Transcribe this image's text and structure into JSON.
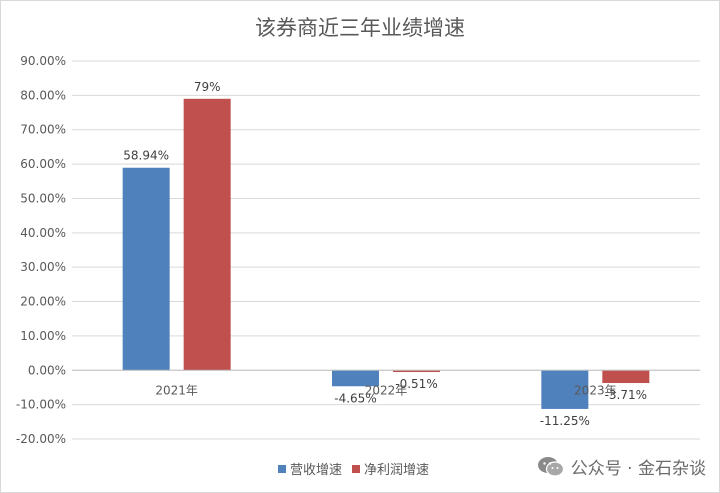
{
  "chart_data": {
    "type": "bar",
    "title": "该券商近三年业绩增速",
    "categories": [
      "2021年",
      "2022年",
      "2023年"
    ],
    "series": [
      {
        "name": "营收增速",
        "color": "#4f81bd",
        "values": [
          58.94,
          -4.65,
          -11.25
        ],
        "labels": [
          "58.94%",
          "-4.65%",
          "-11.25%"
        ]
      },
      {
        "name": "净利润增速",
        "color": "#c0504d",
        "values": [
          79,
          -0.51,
          -3.71
        ],
        "labels": [
          "79%",
          "-0.51%",
          "-3.71%"
        ]
      }
    ],
    "ylim": [
      -20,
      90
    ],
    "yticks": [
      90,
      80,
      70,
      60,
      50,
      40,
      30,
      20,
      10,
      0,
      -10,
      -20
    ],
    "ytick_labels": [
      "90.00%",
      "80.00%",
      "70.00%",
      "60.00%",
      "50.00%",
      "40.00%",
      "30.00%",
      "20.00%",
      "10.00%",
      "0.00%",
      "-10.00%",
      "-20.00%"
    ],
    "grid": true,
    "legend_position": "bottom"
  },
  "watermark": {
    "text": "公众号 · 金石杂谈",
    "icon": "wechat-icon"
  }
}
